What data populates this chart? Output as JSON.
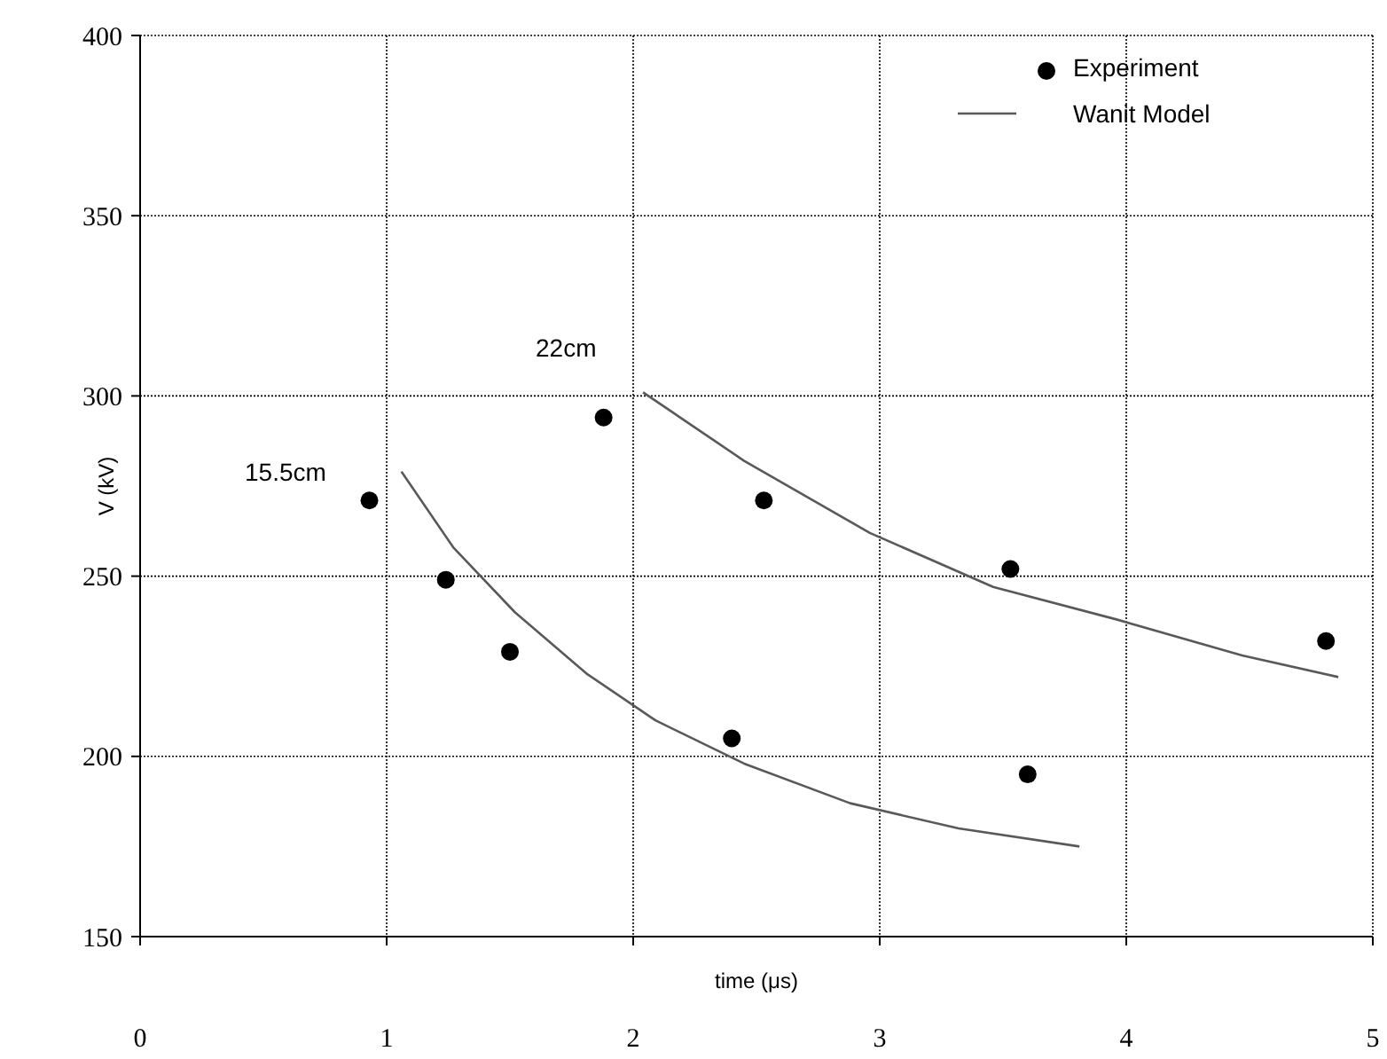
{
  "chart_data": {
    "type": "scatter",
    "xlabel": "time (μs)",
    "ylabel": "V (kV)",
    "xlim": [
      0,
      5
    ],
    "ylim": [
      150,
      400
    ],
    "xticks": [
      0,
      1,
      2,
      3,
      4,
      5
    ],
    "yticks": [
      150,
      200,
      250,
      300,
      350,
      400
    ],
    "grid": true,
    "legend": "top right",
    "series": [
      {
        "name": "Experiment",
        "color": "#000000",
        "marker": "circle",
        "x": [
          0.93,
          1.24,
          1.5,
          1.88,
          2.4,
          2.53,
          3.53,
          3.6,
          4.81
        ],
        "values": [
          271,
          249,
          229,
          294,
          205,
          271,
          252,
          195,
          232
        ]
      },
      {
        "name": "Wanit Model",
        "type": "line",
        "color": "#595959",
        "line_style": "solid",
        "x": [
          1.06,
          1.27,
          1.52,
          1.81,
          2.09,
          2.45,
          2.88,
          3.32,
          3.81
        ],
        "values": [
          279,
          258,
          240,
          223,
          210,
          198,
          187,
          180,
          175
        ]
      },
      {
        "type": "line",
        "color": "#595959",
        "line_style": "solid",
        "x": [
          2.04,
          2.45,
          2.96,
          3.46,
          3.96,
          4.47,
          4.86
        ],
        "values": [
          301,
          282,
          262,
          247,
          238,
          228,
          222
        ]
      }
    ],
    "annotations": [
      "15.5cm",
      "22cm"
    ]
  }
}
